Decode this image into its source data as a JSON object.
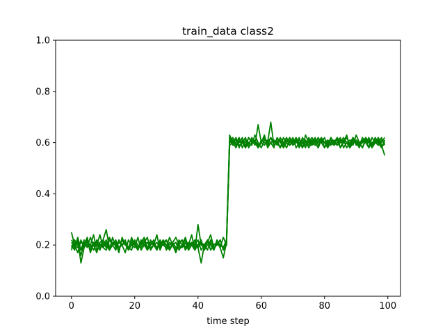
{
  "chart_data": {
    "type": "line",
    "title": "train_data class2",
    "xlabel": "time step",
    "ylabel": "",
    "xlim": [
      -5,
      104
    ],
    "ylim": [
      0,
      1
    ],
    "x_ticks": [
      0,
      20,
      40,
      60,
      80,
      100
    ],
    "y_ticks": [
      0.0,
      0.2,
      0.4,
      0.6,
      0.8,
      1.0
    ],
    "x_tick_labels": [
      "0",
      "20",
      "40",
      "60",
      "80",
      "100"
    ],
    "y_tick_labels": [
      "0.0",
      "0.2",
      "0.4",
      "0.6",
      "0.8",
      "1.0"
    ],
    "grid": false,
    "line_color": "#008000",
    "x": [
      0,
      1,
      2,
      3,
      4,
      5,
      6,
      7,
      8,
      9,
      10,
      11,
      12,
      13,
      14,
      15,
      16,
      17,
      18,
      19,
      20,
      21,
      22,
      23,
      24,
      25,
      26,
      27,
      28,
      29,
      30,
      31,
      32,
      33,
      34,
      35,
      36,
      37,
      38,
      39,
      40,
      41,
      42,
      43,
      44,
      45,
      46,
      47,
      48,
      49,
      50,
      51,
      52,
      53,
      54,
      55,
      56,
      57,
      58,
      59,
      60,
      61,
      62,
      63,
      64,
      65,
      66,
      67,
      68,
      69,
      70,
      71,
      72,
      73,
      74,
      75,
      76,
      77,
      78,
      79,
      80,
      81,
      82,
      83,
      84,
      85,
      86,
      87,
      88,
      89,
      90,
      91,
      92,
      93,
      94,
      95,
      96,
      97,
      98,
      99
    ],
    "series": [
      {
        "values": [
          0.21,
          0.19,
          0.23,
          0.18,
          0.2,
          0.22,
          0.17,
          0.21,
          0.2,
          0.24,
          0.19,
          0.18,
          0.22,
          0.2,
          0.21,
          0.17,
          0.23,
          0.2,
          0.19,
          0.22,
          0.2,
          0.18,
          0.21,
          0.23,
          0.19,
          0.2,
          0.22,
          0.18,
          0.21,
          0.2,
          0.19,
          0.23,
          0.2,
          0.17,
          0.21,
          0.22,
          0.19,
          0.2,
          0.24,
          0.18,
          0.2,
          0.21,
          0.19,
          0.22,
          0.2,
          0.18,
          0.21,
          0.2,
          0.19,
          0.22,
          0.6,
          0.62,
          0.59,
          0.61,
          0.6,
          0.58,
          0.62,
          0.6,
          0.61,
          0.59,
          0.6,
          0.63,
          0.58,
          0.6,
          0.61,
          0.59,
          0.62,
          0.6,
          0.58,
          0.61,
          0.6,
          0.62,
          0.59,
          0.6,
          0.61,
          0.58,
          0.6,
          0.62,
          0.59,
          0.61,
          0.6,
          0.58,
          0.62,
          0.6,
          0.59,
          0.61,
          0.6,
          0.63,
          0.58,
          0.6,
          0.61,
          0.59,
          0.6,
          0.62,
          0.58,
          0.6,
          0.61,
          0.59,
          0.6,
          0.62
        ]
      },
      {
        "values": [
          0.18,
          0.22,
          0.2,
          0.16,
          0.21,
          0.19,
          0.23,
          0.2,
          0.17,
          0.21,
          0.22,
          0.2,
          0.18,
          0.23,
          0.19,
          0.21,
          0.2,
          0.17,
          0.22,
          0.2,
          0.19,
          0.23,
          0.18,
          0.2,
          0.21,
          0.19,
          0.2,
          0.24,
          0.18,
          0.21,
          0.22,
          0.19,
          0.2,
          0.21,
          0.18,
          0.2,
          0.23,
          0.19,
          0.21,
          0.2,
          0.22,
          0.18,
          0.2,
          0.21,
          0.24,
          0.19,
          0.2,
          0.22,
          0.18,
          0.2,
          0.61,
          0.59,
          0.6,
          0.62,
          0.58,
          0.61,
          0.6,
          0.59,
          0.63,
          0.6,
          0.58,
          0.61,
          0.6,
          0.62,
          0.59,
          0.6,
          0.61,
          0.58,
          0.6,
          0.62,
          0.59,
          0.61,
          0.6,
          0.58,
          0.63,
          0.6,
          0.59,
          0.61,
          0.6,
          0.62,
          0.58,
          0.6,
          0.61,
          0.59,
          0.6,
          0.62,
          0.58,
          0.6,
          0.61,
          0.59,
          0.63,
          0.6,
          0.58,
          0.61,
          0.6,
          0.59,
          0.62,
          0.6,
          0.58,
          0.61
        ]
      },
      {
        "values": [
          0.25,
          0.2,
          0.17,
          0.22,
          0.19,
          0.21,
          0.2,
          0.24,
          0.18,
          0.2,
          0.21,
          0.19,
          0.23,
          0.2,
          0.18,
          0.22,
          0.2,
          0.21,
          0.19,
          0.18,
          0.22,
          0.2,
          0.19,
          0.21,
          0.23,
          0.18,
          0.2,
          0.21,
          0.19,
          0.22,
          0.2,
          0.18,
          0.21,
          0.23,
          0.2,
          0.19,
          0.21,
          0.18,
          0.2,
          0.22,
          0.19,
          0.21,
          0.2,
          0.18,
          0.22,
          0.2,
          0.21,
          0.19,
          0.23,
          0.2,
          0.59,
          0.6,
          0.62,
          0.58,
          0.61,
          0.6,
          0.59,
          0.62,
          0.6,
          0.58,
          0.61,
          0.6,
          0.59,
          0.62,
          0.6,
          0.61,
          0.58,
          0.6,
          0.62,
          0.59,
          0.6,
          0.61,
          0.58,
          0.62,
          0.6,
          0.59,
          0.61,
          0.6,
          0.58,
          0.62,
          0.6,
          0.61,
          0.59,
          0.6,
          0.62,
          0.58,
          0.61,
          0.6,
          0.59,
          0.62,
          0.6,
          0.58,
          0.61,
          0.6,
          0.62,
          0.59,
          0.6,
          0.61,
          0.58,
          0.6
        ]
      },
      {
        "values": [
          0.2,
          0.18,
          0.22,
          0.13,
          0.19,
          0.21,
          0.2,
          0.18,
          0.22,
          0.2,
          0.19,
          0.21,
          0.18,
          0.2,
          0.22,
          0.19,
          0.2,
          0.21,
          0.18,
          0.23,
          0.2,
          0.19,
          0.21,
          0.2,
          0.18,
          0.22,
          0.2,
          0.19,
          0.21,
          0.2,
          0.22,
          0.18,
          0.2,
          0.21,
          0.19,
          0.2,
          0.22,
          0.18,
          0.2,
          0.21,
          0.19,
          0.13,
          0.2,
          0.22,
          0.18,
          0.2,
          0.21,
          0.19,
          0.15,
          0.21,
          0.62,
          0.6,
          0.61,
          0.59,
          0.6,
          0.62,
          0.58,
          0.6,
          0.61,
          0.59,
          0.6,
          0.62,
          0.6,
          0.68,
          0.59,
          0.6,
          0.61,
          0.58,
          0.6,
          0.62,
          0.59,
          0.6,
          0.61,
          0.6,
          0.58,
          0.62,
          0.6,
          0.59,
          0.61,
          0.6,
          0.62,
          0.58,
          0.6,
          0.61,
          0.59,
          0.6,
          0.62,
          0.6,
          0.58,
          0.61,
          0.6,
          0.59,
          0.62,
          0.6,
          0.61,
          0.58,
          0.6,
          0.62,
          0.59,
          0.55
        ]
      },
      {
        "values": [
          0.19,
          0.21,
          0.2,
          0.18,
          0.22,
          0.2,
          0.19,
          0.21,
          0.2,
          0.18,
          0.22,
          0.26,
          0.19,
          0.21,
          0.2,
          0.18,
          0.22,
          0.2,
          0.19,
          0.21,
          0.2,
          0.18,
          0.22,
          0.2,
          0.19,
          0.21,
          0.2,
          0.18,
          0.22,
          0.2,
          0.19,
          0.21,
          0.2,
          0.18,
          0.22,
          0.2,
          0.19,
          0.21,
          0.2,
          0.18,
          0.28,
          0.2,
          0.19,
          0.21,
          0.2,
          0.18,
          0.22,
          0.2,
          0.19,
          0.21,
          0.6,
          0.61,
          0.59,
          0.6,
          0.62,
          0.58,
          0.6,
          0.61,
          0.59,
          0.67,
          0.6,
          0.59,
          0.61,
          0.6,
          0.58,
          0.62,
          0.6,
          0.59,
          0.61,
          0.6,
          0.62,
          0.58,
          0.6,
          0.61,
          0.59,
          0.6,
          0.62,
          0.6,
          0.58,
          0.61,
          0.6,
          0.59,
          0.62,
          0.6,
          0.61,
          0.58,
          0.6,
          0.62,
          0.59,
          0.6,
          0.61,
          0.6,
          0.58,
          0.62,
          0.6,
          0.59,
          0.61,
          0.6,
          0.62,
          0.59
        ]
      },
      {
        "values": [
          0.22,
          0.2,
          0.19,
          0.21,
          0.2,
          0.23,
          0.18,
          0.2,
          0.21,
          0.19,
          0.2,
          0.22,
          0.18,
          0.2,
          0.21,
          0.19,
          0.2,
          0.22,
          0.18,
          0.2,
          0.21,
          0.19,
          0.2,
          0.22,
          0.18,
          0.2,
          0.21,
          0.19,
          0.2,
          0.22,
          0.18,
          0.2,
          0.21,
          0.19,
          0.2,
          0.22,
          0.18,
          0.2,
          0.21,
          0.19,
          0.2,
          0.22,
          0.18,
          0.2,
          0.21,
          0.19,
          0.2,
          0.22,
          0.18,
          0.2,
          0.63,
          0.6,
          0.58,
          0.61,
          0.6,
          0.59,
          0.62,
          0.6,
          0.61,
          0.58,
          0.6,
          0.62,
          0.59,
          0.6,
          0.61,
          0.6,
          0.58,
          0.62,
          0.6,
          0.59,
          0.61,
          0.6,
          0.62,
          0.58,
          0.6,
          0.61,
          0.59,
          0.6,
          0.62,
          0.6,
          0.58,
          0.61,
          0.6,
          0.59,
          0.62,
          0.6,
          0.61,
          0.58,
          0.6,
          0.62,
          0.59,
          0.6,
          0.61,
          0.6,
          0.58,
          0.62,
          0.6,
          0.59,
          0.61,
          0.6
        ]
      }
    ]
  }
}
